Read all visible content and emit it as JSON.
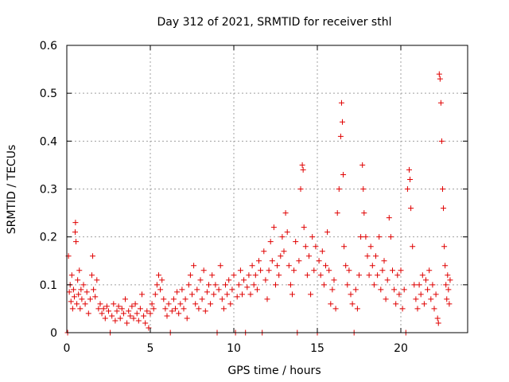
{
  "chart_data": {
    "type": "scatter",
    "title": "Day 312 of 2021, SRMTID for receiver sthl",
    "xlabel": "GPS time / hours",
    "ylabel": "SRMTID / TECUs",
    "xlim": [
      0,
      24
    ],
    "ylim": [
      0,
      0.6
    ],
    "xticks": [
      0,
      5,
      10,
      15,
      20
    ],
    "xtick_labels": [
      "0",
      "5",
      "10",
      "15",
      "20"
    ],
    "yticks": [
      0,
      0.1,
      0.2,
      0.3,
      0.4,
      0.5,
      0.6
    ],
    "ytick_labels": [
      "0",
      "0.1",
      "0.2",
      "0.3",
      "0.4",
      "0.5",
      "0.6"
    ],
    "grid": true,
    "marker": "+",
    "series": [
      {
        "name": "SRMTID",
        "color": "#e00000",
        "points": [
          [
            0.05,
            0.0
          ],
          [
            0.1,
            0.16
          ],
          [
            0.15,
            0.085
          ],
          [
            0.2,
            0.1
          ],
          [
            0.25,
            0.065
          ],
          [
            0.3,
            0.12
          ],
          [
            0.35,
            0.05
          ],
          [
            0.4,
            0.09
          ],
          [
            0.45,
            0.075
          ],
          [
            0.5,
            0.21
          ],
          [
            0.52,
            0.23
          ],
          [
            0.55,
            0.19
          ],
          [
            0.6,
            0.06
          ],
          [
            0.65,
            0.11
          ],
          [
            0.7,
            0.08
          ],
          [
            0.75,
            0.13
          ],
          [
            0.8,
            0.05
          ],
          [
            0.85,
            0.09
          ],
          [
            0.9,
            0.07
          ],
          [
            1.0,
            0.1
          ],
          [
            1.1,
            0.06
          ],
          [
            1.2,
            0.085
          ],
          [
            1.3,
            0.04
          ],
          [
            1.4,
            0.07
          ],
          [
            1.5,
            0.12
          ],
          [
            1.55,
            0.16
          ],
          [
            1.6,
            0.09
          ],
          [
            1.7,
            0.075
          ],
          [
            1.8,
            0.11
          ],
          [
            1.9,
            0.05
          ],
          [
            2.0,
            0.06
          ],
          [
            2.1,
            0.04
          ],
          [
            2.2,
            0.05
          ],
          [
            2.3,
            0.03
          ],
          [
            2.4,
            0.055
          ],
          [
            2.5,
            0.045
          ],
          [
            2.6,
            0.0
          ],
          [
            2.7,
            0.035
          ],
          [
            2.8,
            0.06
          ],
          [
            2.9,
            0.025
          ],
          [
            3.0,
            0.045
          ],
          [
            3.1,
            0.055
          ],
          [
            3.2,
            0.03
          ],
          [
            3.3,
            0.05
          ],
          [
            3.4,
            0.04
          ],
          [
            3.5,
            0.07
          ],
          [
            3.6,
            0.02
          ],
          [
            3.7,
            0.045
          ],
          [
            3.8,
            0.035
          ],
          [
            3.9,
            0.055
          ],
          [
            4.0,
            0.03
          ],
          [
            4.1,
            0.06
          ],
          [
            4.2,
            0.04
          ],
          [
            4.3,
            0.025
          ],
          [
            4.4,
            0.05
          ],
          [
            4.5,
            0.08
          ],
          [
            4.6,
            0.035
          ],
          [
            4.7,
            0.02
          ],
          [
            4.8,
            0.045
          ],
          [
            4.9,
            0.01
          ],
          [
            5.0,
            0.04
          ],
          [
            5.1,
            0.06
          ],
          [
            5.2,
            0.05
          ],
          [
            5.3,
            0.08
          ],
          [
            5.4,
            0.1
          ],
          [
            5.5,
            0.12
          ],
          [
            5.6,
            0.09
          ],
          [
            5.7,
            0.11
          ],
          [
            5.8,
            0.07
          ],
          [
            5.9,
            0.05
          ],
          [
            6.0,
            0.035
          ],
          [
            6.1,
            0.06
          ],
          [
            6.2,
            0.0
          ],
          [
            6.3,
            0.045
          ],
          [
            6.4,
            0.07
          ],
          [
            6.5,
            0.05
          ],
          [
            6.6,
            0.085
          ],
          [
            6.7,
            0.04
          ],
          [
            6.8,
            0.06
          ],
          [
            6.9,
            0.09
          ],
          [
            7.0,
            0.05
          ],
          [
            7.1,
            0.07
          ],
          [
            7.2,
            0.03
          ],
          [
            7.3,
            0.1
          ],
          [
            7.4,
            0.12
          ],
          [
            7.5,
            0.08
          ],
          [
            7.6,
            0.14
          ],
          [
            7.7,
            0.06
          ],
          [
            7.8,
            0.09
          ],
          [
            7.9,
            0.05
          ],
          [
            8.0,
            0.11
          ],
          [
            8.1,
            0.07
          ],
          [
            8.2,
            0.13
          ],
          [
            8.3,
            0.045
          ],
          [
            8.4,
            0.085
          ],
          [
            8.5,
            0.1
          ],
          [
            8.6,
            0.06
          ],
          [
            8.7,
            0.12
          ],
          [
            8.8,
            0.08
          ],
          [
            8.9,
            0.1
          ],
          [
            9.0,
            0.0
          ],
          [
            9.1,
            0.09
          ],
          [
            9.2,
            0.14
          ],
          [
            9.3,
            0.07
          ],
          [
            9.4,
            0.05
          ],
          [
            9.5,
            0.1
          ],
          [
            9.6,
            0.08
          ],
          [
            9.7,
            0.11
          ],
          [
            9.8,
            0.06
          ],
          [
            9.9,
            0.09
          ],
          [
            10.0,
            0.12
          ],
          [
            10.1,
            0.0
          ],
          [
            10.2,
            0.075
          ],
          [
            10.3,
            0.1
          ],
          [
            10.4,
            0.13
          ],
          [
            10.5,
            0.08
          ],
          [
            10.6,
            0.11
          ],
          [
            10.7,
            0.0
          ],
          [
            10.8,
            0.095
          ],
          [
            10.9,
            0.12
          ],
          [
            11.0,
            0.08
          ],
          [
            11.1,
            0.14
          ],
          [
            11.2,
            0.1
          ],
          [
            11.3,
            0.12
          ],
          [
            11.4,
            0.09
          ],
          [
            11.5,
            0.15
          ],
          [
            11.6,
            0.13
          ],
          [
            11.7,
            0.0
          ],
          [
            11.8,
            0.17
          ],
          [
            11.9,
            0.11
          ],
          [
            12.0,
            0.07
          ],
          [
            12.1,
            0.13
          ],
          [
            12.2,
            0.19
          ],
          [
            12.3,
            0.15
          ],
          [
            12.4,
            0.22
          ],
          [
            12.5,
            0.1
          ],
          [
            12.6,
            0.14
          ],
          [
            12.7,
            0.12
          ],
          [
            12.8,
            0.16
          ],
          [
            12.9,
            0.2
          ],
          [
            13.0,
            0.17
          ],
          [
            13.1,
            0.25
          ],
          [
            13.2,
            0.21
          ],
          [
            13.3,
            0.14
          ],
          [
            13.4,
            0.1
          ],
          [
            13.5,
            0.08
          ],
          [
            13.6,
            0.13
          ],
          [
            13.7,
            0.19
          ],
          [
            13.8,
            0.0
          ],
          [
            13.9,
            0.15
          ],
          [
            14.0,
            0.3
          ],
          [
            14.1,
            0.35
          ],
          [
            14.15,
            0.34
          ],
          [
            14.2,
            0.22
          ],
          [
            14.3,
            0.18
          ],
          [
            14.4,
            0.12
          ],
          [
            14.5,
            0.16
          ],
          [
            14.6,
            0.08
          ],
          [
            14.7,
            0.2
          ],
          [
            14.8,
            0.13
          ],
          [
            14.9,
            0.18
          ],
          [
            15.0,
            0.0
          ],
          [
            15.1,
            0.15
          ],
          [
            15.2,
            0.12
          ],
          [
            15.3,
            0.17
          ],
          [
            15.4,
            0.1
          ],
          [
            15.5,
            0.14
          ],
          [
            15.6,
            0.21
          ],
          [
            15.7,
            0.13
          ],
          [
            15.8,
            0.06
          ],
          [
            15.9,
            0.09
          ],
          [
            16.0,
            0.11
          ],
          [
            16.1,
            0.05
          ],
          [
            16.2,
            0.25
          ],
          [
            16.3,
            0.3
          ],
          [
            16.4,
            0.41
          ],
          [
            16.45,
            0.48
          ],
          [
            16.5,
            0.44
          ],
          [
            16.55,
            0.33
          ],
          [
            16.6,
            0.18
          ],
          [
            16.7,
            0.14
          ],
          [
            16.8,
            0.1
          ],
          [
            16.9,
            0.13
          ],
          [
            17.0,
            0.08
          ],
          [
            17.1,
            0.06
          ],
          [
            17.2,
            0.0
          ],
          [
            17.3,
            0.09
          ],
          [
            17.4,
            0.05
          ],
          [
            17.5,
            0.12
          ],
          [
            17.6,
            0.2
          ],
          [
            17.7,
            0.35
          ],
          [
            17.75,
            0.3
          ],
          [
            17.8,
            0.25
          ],
          [
            17.9,
            0.2
          ],
          [
            18.0,
            0.16
          ],
          [
            18.1,
            0.12
          ],
          [
            18.2,
            0.18
          ],
          [
            18.3,
            0.14
          ],
          [
            18.4,
            0.1
          ],
          [
            18.5,
            0.16
          ],
          [
            18.6,
            0.12
          ],
          [
            18.7,
            0.2
          ],
          [
            18.8,
            0.09
          ],
          [
            18.9,
            0.13
          ],
          [
            19.0,
            0.15
          ],
          [
            19.1,
            0.07
          ],
          [
            19.2,
            0.11
          ],
          [
            19.3,
            0.24
          ],
          [
            19.4,
            0.2
          ],
          [
            19.5,
            0.13
          ],
          [
            19.6,
            0.09
          ],
          [
            19.7,
            0.06
          ],
          [
            19.8,
            0.12
          ],
          [
            19.9,
            0.08
          ],
          [
            20.0,
            0.13
          ],
          [
            20.1,
            0.05
          ],
          [
            20.2,
            0.09
          ],
          [
            20.3,
            0.0
          ],
          [
            20.4,
            0.3
          ],
          [
            20.5,
            0.34
          ],
          [
            20.55,
            0.32
          ],
          [
            20.6,
            0.26
          ],
          [
            20.7,
            0.18
          ],
          [
            20.8,
            0.1
          ],
          [
            20.9,
            0.07
          ],
          [
            21.0,
            0.05
          ],
          [
            21.1,
            0.1
          ],
          [
            21.2,
            0.08
          ],
          [
            21.3,
            0.12
          ],
          [
            21.4,
            0.06
          ],
          [
            21.5,
            0.11
          ],
          [
            21.6,
            0.09
          ],
          [
            21.7,
            0.13
          ],
          [
            21.8,
            0.07
          ],
          [
            21.9,
            0.1
          ],
          [
            22.0,
            0.05
          ],
          [
            22.1,
            0.08
          ],
          [
            22.2,
            0.03
          ],
          [
            22.25,
            0.02
          ],
          [
            22.3,
            0.54
          ],
          [
            22.35,
            0.53
          ],
          [
            22.4,
            0.48
          ],
          [
            22.45,
            0.4
          ],
          [
            22.5,
            0.3
          ],
          [
            22.55,
            0.26
          ],
          [
            22.6,
            0.18
          ],
          [
            22.65,
            0.14
          ],
          [
            22.7,
            0.1
          ],
          [
            22.75,
            0.07
          ],
          [
            22.8,
            0.12
          ],
          [
            22.85,
            0.09
          ],
          [
            22.9,
            0.06
          ],
          [
            22.95,
            0.11
          ]
        ]
      }
    ]
  }
}
